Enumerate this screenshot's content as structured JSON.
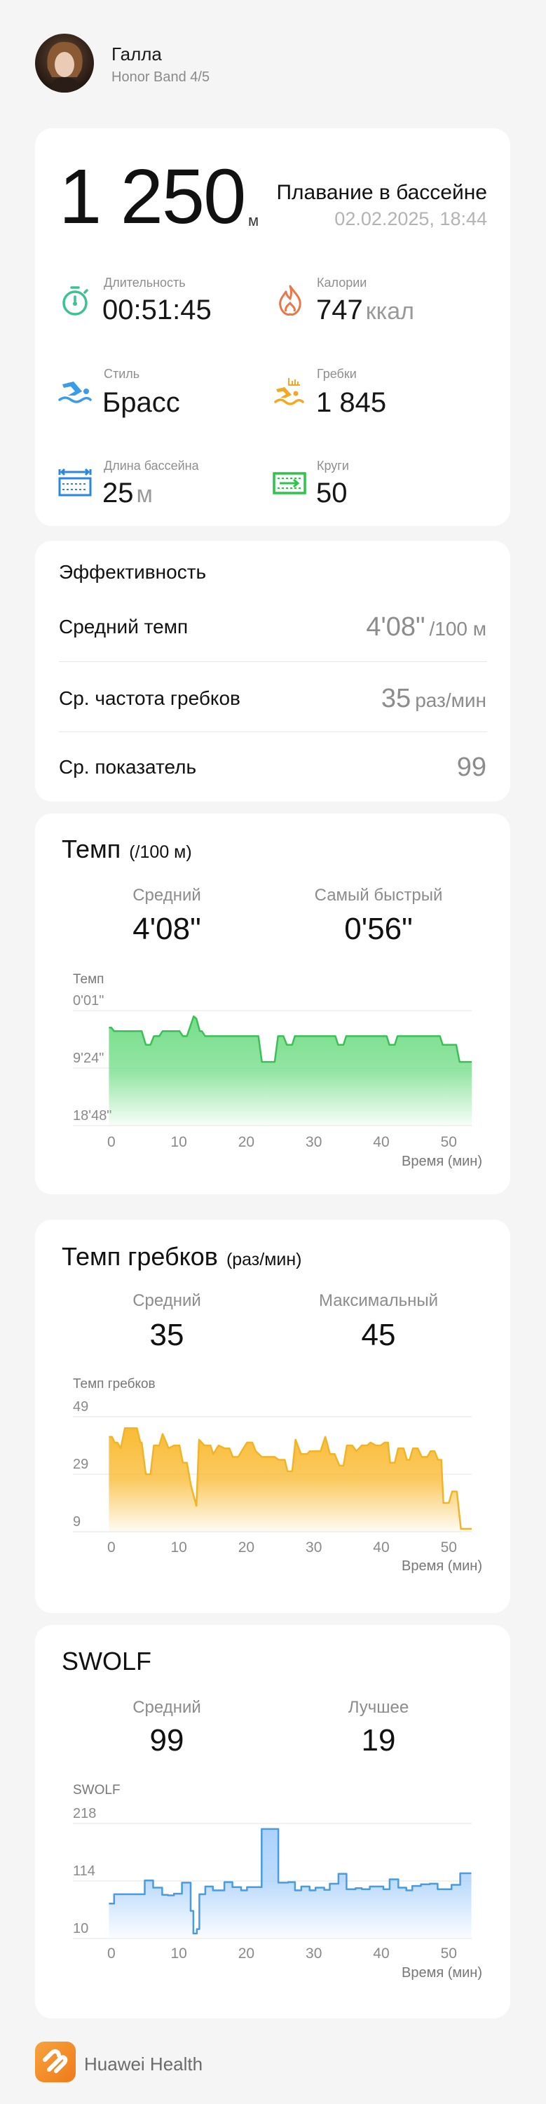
{
  "header": {
    "user_name": "Галла",
    "device": "Honor Band 4/5"
  },
  "summary": {
    "distance": "1 250",
    "distance_unit": "м",
    "activity": "Плавание в бассейне",
    "datetime": "02.02.2025, 18:44",
    "metrics": [
      {
        "icon": "stopwatch-icon",
        "label": "Длительность",
        "value": "00:51:45",
        "unit": "",
        "color": "#3cc28f"
      },
      {
        "icon": "flame-icon",
        "label": "Калории",
        "value": "747",
        "unit": "ккал",
        "color": "#e8774a"
      },
      {
        "icon": "swimmer-icon",
        "label": "Стиль",
        "value": "Брасс",
        "unit": "",
        "color": "#3a9be8"
      },
      {
        "icon": "swim-strokes-icon",
        "label": "Гребки",
        "value": "1 845",
        "unit": "",
        "color": "#f5a623"
      },
      {
        "icon": "pool-length-icon",
        "label": "Длина бассейна",
        "value": "25",
        "unit": "м",
        "color": "#2a86e0"
      },
      {
        "icon": "laps-icon",
        "label": "Круги",
        "value": "50",
        "unit": "",
        "color": "#2ec44a"
      }
    ]
  },
  "efficiency": {
    "title": "Эффективность",
    "rows": [
      {
        "label": "Средний темп",
        "value": "4'08\"",
        "unit": "/100 м"
      },
      {
        "label": "Ср. частота гребков",
        "value": "35",
        "unit": "раз/мин"
      },
      {
        "label": "Ср. показатель",
        "value": "99",
        "unit": ""
      }
    ]
  },
  "pace": {
    "title": "Темп",
    "subtitle": "(/100 м)",
    "stats": [
      {
        "label": "Средний",
        "value": "4'08\""
      },
      {
        "label": "Самый быстрый",
        "value": "0'56\""
      }
    ]
  },
  "stroke_rate": {
    "title": "Темп гребков",
    "subtitle": "(раз/мин)",
    "stats": [
      {
        "label": "Средний",
        "value": "35"
      },
      {
        "label": "Максимальный",
        "value": "45"
      }
    ]
  },
  "swolf": {
    "title": "SWOLF",
    "stats": [
      {
        "label": "Средний",
        "value": "99"
      },
      {
        "label": "Лучшее",
        "value": "19"
      }
    ]
  },
  "footer": {
    "app_name": "Huawei Health",
    "brand_color": "#f28a25"
  },
  "chart_data": [
    {
      "type": "area",
      "ylabel": "Темп",
      "xlabel": "Время (мин)",
      "y_inverted": true,
      "yticks": [
        "0'01\"",
        "9'24\"",
        "18'48\""
      ],
      "xticks": [
        0,
        10,
        20,
        30,
        40,
        50
      ],
      "xlim": [
        -0.4,
        53.4
      ],
      "grid": true,
      "color": "#3cbf57",
      "fill": "#6fdc84",
      "stepped": false,
      "points": [
        [
          -0.36,
          "2'47\""
        ],
        [
          0,
          "2'47\""
        ],
        [
          0.4,
          "3'22\""
        ],
        [
          4.5,
          "3'22\""
        ],
        [
          5.1,
          "5'36\""
        ],
        [
          5.8,
          "5'36\""
        ],
        [
          6.3,
          "4'11\""
        ],
        [
          7.1,
          "4'11\""
        ],
        [
          7.6,
          "3'22\""
        ],
        [
          10.1,
          "3'22\""
        ],
        [
          10.6,
          "4'11\""
        ],
        [
          11.2,
          "4'11\""
        ],
        [
          12.2,
          "0'57\""
        ],
        [
          12.6,
          "1'19\""
        ],
        [
          13.1,
          "3'22\""
        ],
        [
          13.4,
          "3'22\""
        ],
        [
          13.9,
          "4'11\""
        ],
        [
          21.8,
          "4'11\""
        ],
        [
          22.3,
          "8'23\""
        ],
        [
          24.2,
          "8'23\""
        ],
        [
          24.7,
          "4'11\""
        ],
        [
          25.5,
          "4'11\""
        ],
        [
          26.0,
          "5'36\""
        ],
        [
          26.8,
          "5'36\""
        ],
        [
          27.2,
          "4'11\""
        ],
        [
          33.2,
          "4'11\""
        ],
        [
          33.6,
          "5'36\""
        ],
        [
          34.4,
          "5'36\""
        ],
        [
          34.8,
          "4'11\""
        ],
        [
          40.8,
          "4'11\""
        ],
        [
          41.2,
          "5'36\""
        ],
        [
          42.0,
          "5'36\""
        ],
        [
          42.4,
          "4'11\""
        ],
        [
          48.7,
          "4'11\""
        ],
        [
          49.1,
          "5'36\""
        ],
        [
          51.1,
          "5'36\""
        ],
        [
          51.6,
          "8'23\""
        ],
        [
          53.4,
          "8'23\""
        ]
      ]
    },
    {
      "type": "area",
      "ylabel": "Темп гребков",
      "xlabel": "Время (мин)",
      "yticks": [
        49,
        29,
        9
      ],
      "ylim": [
        9,
        49
      ],
      "xticks": [
        0,
        10,
        20,
        30,
        40,
        50
      ],
      "xlim": [
        -0.4,
        53.4
      ],
      "grid": true,
      "color": "#f0b429",
      "fill": "#f9b82b",
      "stepped": false,
      "points": [
        [
          -0.36,
          42
        ],
        [
          0.1,
          42
        ],
        [
          0.5,
          40
        ],
        [
          0.9,
          40
        ],
        [
          1.4,
          38
        ],
        [
          2.0,
          45
        ],
        [
          3.8,
          45
        ],
        [
          4.3,
          40
        ],
        [
          4.5,
          40
        ],
        [
          5.1,
          29
        ],
        [
          5.8,
          29
        ],
        [
          6.3,
          39
        ],
        [
          7.1,
          39
        ],
        [
          7.6,
          43
        ],
        [
          8.5,
          38
        ],
        [
          9.3,
          39
        ],
        [
          10.1,
          39
        ],
        [
          10.6,
          33
        ],
        [
          11.2,
          33
        ],
        [
          11.8,
          25
        ],
        [
          12.6,
          18
        ],
        [
          13.0,
          41
        ],
        [
          13.8,
          39
        ],
        [
          14.7,
          39
        ],
        [
          15.1,
          36
        ],
        [
          15.9,
          39
        ],
        [
          16.8,
          38
        ],
        [
          17.5,
          38
        ],
        [
          18.0,
          35
        ],
        [
          18.8,
          35
        ],
        [
          19.3,
          37
        ],
        [
          20.1,
          40
        ],
        [
          20.9,
          40
        ],
        [
          21.4,
          37
        ],
        [
          22.3,
          35
        ],
        [
          24.2,
          35
        ],
        [
          24.8,
          34
        ],
        [
          25.7,
          34
        ],
        [
          26.1,
          30
        ],
        [
          26.8,
          30
        ],
        [
          27.3,
          41
        ],
        [
          28.1,
          36
        ],
        [
          29.0,
          36
        ],
        [
          29.4,
          37
        ],
        [
          31.0,
          37
        ],
        [
          31.7,
          42
        ],
        [
          32.4,
          36
        ],
        [
          33.1,
          36
        ],
        [
          33.8,
          32
        ],
        [
          34.4,
          32
        ],
        [
          34.9,
          39
        ],
        [
          35.7,
          39
        ],
        [
          36.3,
          37
        ],
        [
          37.1,
          39
        ],
        [
          37.9,
          39
        ],
        [
          38.4,
          40
        ],
        [
          39.2,
          39
        ],
        [
          39.9,
          39
        ],
        [
          40.5,
          40
        ],
        [
          41.0,
          40
        ],
        [
          41.3,
          33
        ],
        [
          42.0,
          33
        ],
        [
          42.5,
          38
        ],
        [
          43.3,
          38
        ],
        [
          43.8,
          34
        ],
        [
          44.2,
          34
        ],
        [
          44.7,
          38
        ],
        [
          45.4,
          38
        ],
        [
          46.0,
          35
        ],
        [
          46.8,
          35
        ],
        [
          47.3,
          37
        ],
        [
          47.9,
          37
        ],
        [
          48.4,
          34
        ],
        [
          48.9,
          34
        ],
        [
          49.2,
          19
        ],
        [
          50.0,
          19
        ],
        [
          50.5,
          23
        ],
        [
          51.2,
          23
        ],
        [
          51.8,
          10
        ],
        [
          53.4,
          10
        ]
      ]
    },
    {
      "type": "area",
      "ylabel": "SWOLF",
      "xlabel": "Время (мин)",
      "yticks": [
        218,
        114,
        10
      ],
      "ylim": [
        10,
        218
      ],
      "xticks": [
        0,
        10,
        20,
        30,
        40,
        50
      ],
      "xlim": [
        -0.4,
        53.4
      ],
      "grid": true,
      "color": "#4a9be0",
      "fill": "#a8d0fb",
      "stepped": true,
      "points": [
        [
          -0.36,
          73
        ],
        [
          0.41,
          90
        ],
        [
          2.58,
          90
        ],
        [
          4.95,
          115
        ],
        [
          6.19,
          102
        ],
        [
          7.53,
          89
        ],
        [
          8.4,
          88
        ],
        [
          9.28,
          91
        ],
        [
          10.46,
          111
        ],
        [
          11.75,
          60
        ],
        [
          12.16,
          19
        ],
        [
          12.68,
          27
        ],
        [
          13.04,
          90
        ],
        [
          13.92,
          104
        ],
        [
          15.05,
          97
        ],
        [
          16.75,
          112
        ],
        [
          17.94,
          103
        ],
        [
          19.23,
          97
        ],
        [
          20.1,
          103
        ],
        [
          22.27,
          208
        ],
        [
          24.74,
          111
        ],
        [
          26.19,
          112
        ],
        [
          27.22,
          97
        ],
        [
          28.14,
          104
        ],
        [
          29.38,
          97
        ],
        [
          30.26,
          102
        ],
        [
          31.55,
          98
        ],
        [
          32.37,
          109
        ],
        [
          33.66,
          127
        ],
        [
          34.85,
          99
        ],
        [
          36.19,
          101
        ],
        [
          37.11,
          99
        ],
        [
          38.3,
          104
        ],
        [
          40.31,
          99
        ],
        [
          41.24,
          117
        ],
        [
          42.53,
          102
        ],
        [
          43.71,
          97
        ],
        [
          44.59,
          105
        ],
        [
          45.88,
          108
        ],
        [
          47.16,
          109
        ],
        [
          48.35,
          99
        ],
        [
          50.41,
          107
        ],
        [
          51.7,
          128
        ],
        [
          53.35,
          128
        ]
      ]
    }
  ]
}
